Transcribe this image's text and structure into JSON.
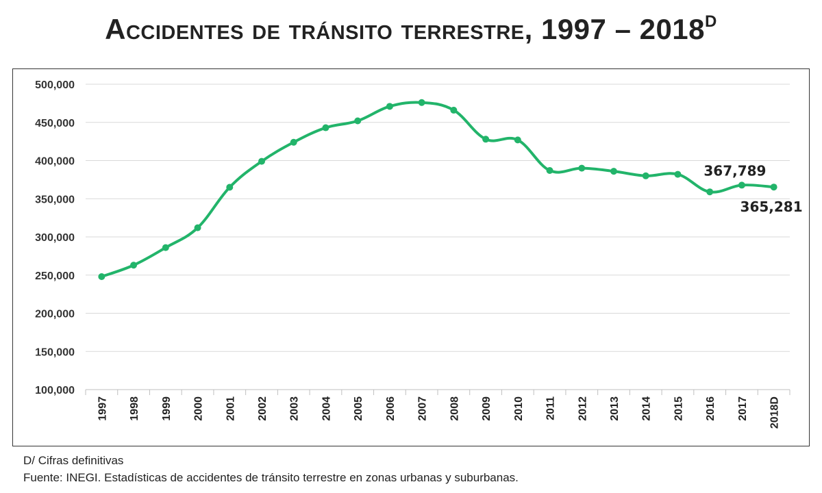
{
  "title": {
    "main": "Accidentes de tránsito terrestre, 1997 – 2018",
    "superscript": "D"
  },
  "footnote": "D/ Cifras definitivas",
  "source": "Fuente: INEGI. Estadísticas de accidentes de tránsito terrestre en zonas urbanas y suburbanas.",
  "colors": {
    "series": "#22b46a",
    "grid": "#d9d9d9",
    "axis": "#bfbfbf"
  },
  "chart_data": {
    "type": "line",
    "title": "Accidentes de tránsito terrestre, 1997 – 2018D",
    "xlabel": "",
    "ylabel": "",
    "categories": [
      "1997",
      "1998",
      "1999",
      "2000",
      "2001",
      "2002",
      "2003",
      "2004",
      "2005",
      "2006",
      "2007",
      "2008",
      "2009",
      "2010",
      "2011",
      "2012",
      "2013",
      "2014",
      "2015",
      "2016",
      "2017",
      "2018D"
    ],
    "series": [
      {
        "name": "Accidentes de tránsito terrestre",
        "values": [
          248000,
          263000,
          286000,
          312000,
          365000,
          399000,
          424000,
          443000,
          452000,
          471000,
          476000,
          466000,
          428000,
          427000,
          387000,
          390000,
          386000,
          380000,
          382000,
          359000,
          367789,
          365281
        ]
      }
    ],
    "ylim": [
      100000,
      500000
    ],
    "yticks": [
      100000,
      150000,
      200000,
      250000,
      300000,
      350000,
      400000,
      450000,
      500000
    ],
    "ytick_labels": [
      "100,000",
      "150,000",
      "200,000",
      "250,000",
      "300,000",
      "350,000",
      "400,000",
      "450,000",
      "500,000"
    ],
    "grid": true,
    "legend": "none",
    "annotations": [
      {
        "category": "2017",
        "text": "367,789"
      },
      {
        "category": "2018D",
        "text": "365,281"
      }
    ]
  }
}
